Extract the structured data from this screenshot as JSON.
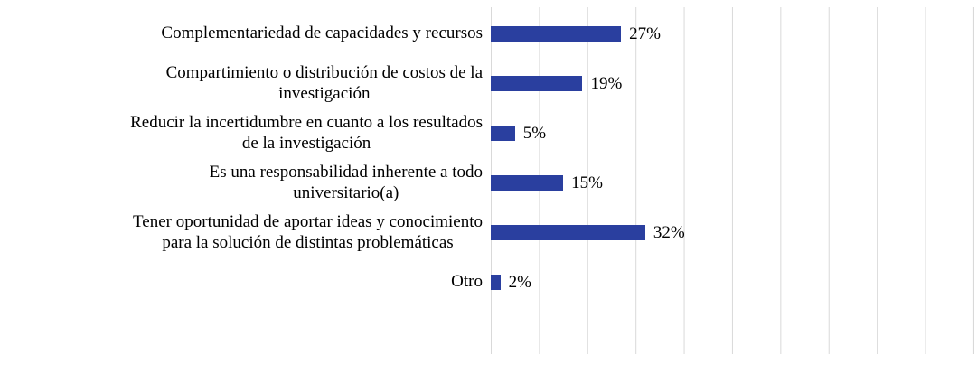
{
  "chart_data": {
    "type": "bar",
    "orientation": "horizontal",
    "title": "",
    "xlabel": "",
    "ylabel": "",
    "categories": [
      "Complementariedad de capacidades y recursos",
      "Compartimiento o distribución de costos de la\ninvestigación",
      "Reducir la incertidumbre en cuanto a los resultados\nde la investigación",
      "Es una responsabilidad inherente a todo\nuniversitario(a)",
      "Tener oportunidad de aportar ideas y conocimiento\npara la solución de distintas problemáticas",
      "Otro"
    ],
    "values": [
      27,
      19,
      5,
      15,
      32,
      2
    ],
    "value_labels": [
      "27%",
      "19%",
      "5%",
      "15%",
      "32%",
      "2%"
    ],
    "xlim": [
      0,
      100
    ],
    "gridline_step": 10,
    "grid": true,
    "legend": "none",
    "tick_labels_shown": false,
    "bar_color": "#2a3f9f",
    "gridline_color": "#d9d9d9",
    "background_color": "#ffffff",
    "text_color": "#000000"
  }
}
